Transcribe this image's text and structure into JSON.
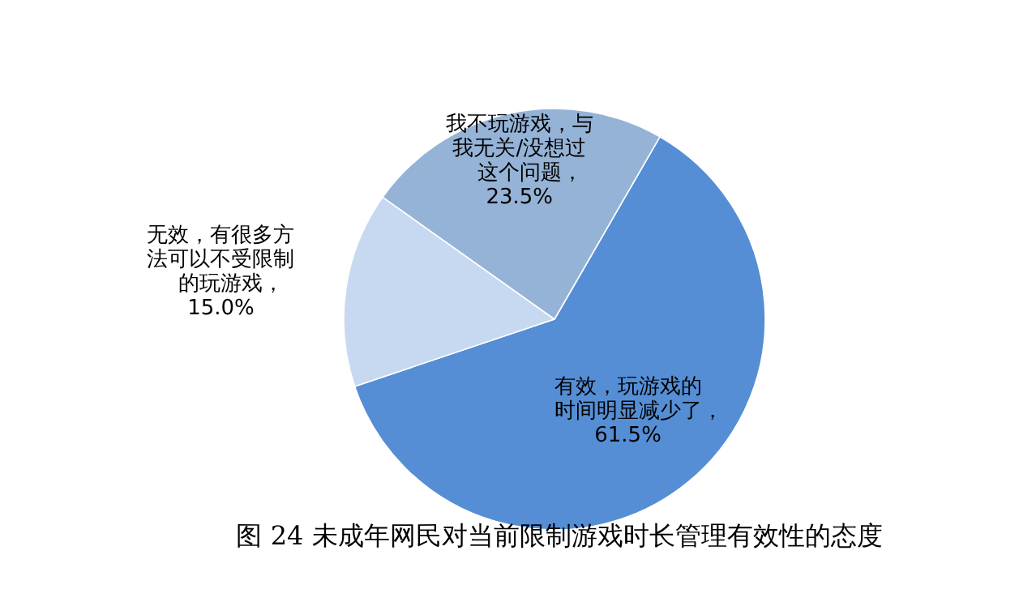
{
  "chart_data": {
    "type": "pie",
    "title": "图 24 未成年网民对当前限制游戏时长管理有效性的态度",
    "categories": [
      "有效，玩游戏的时间明显减少了",
      "无效，有很多方法可以不受限制的玩游戏",
      "我不玩游戏，与我无关/没想过这个问题"
    ],
    "values": [
      61.5,
      15.0,
      23.5
    ],
    "value_labels": [
      "，61.5%",
      "，15.0%",
      "，23.5%"
    ],
    "colors": [
      "#558ed5",
      "#c6d9f1",
      "#95b3d7"
    ]
  }
}
